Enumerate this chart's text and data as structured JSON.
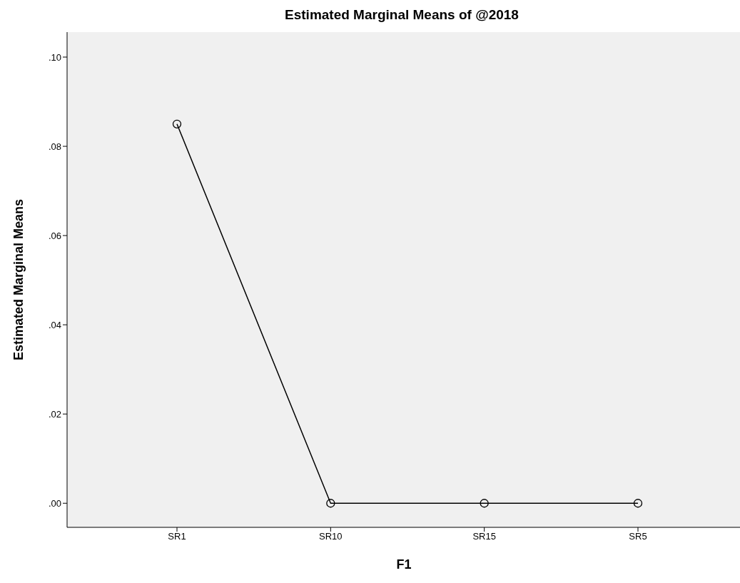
{
  "chart_data": {
    "type": "line",
    "title": "Estimated Marginal Means of @2018",
    "xlabel": "F1",
    "ylabel": "Estimated Marginal Means",
    "categories": [
      "SR1",
      "SR10",
      "SR15",
      "SR5"
    ],
    "series": [
      {
        "color": "#000000",
        "values": [
          0.085,
          0,
          0,
          0
        ]
      }
    ],
    "ylim": [
      -0.0054,
      0.1056
    ],
    "yticks": [
      {
        "value": 0,
        "label": ".00"
      },
      {
        "value": 0.02,
        "label": ".02"
      },
      {
        "value": 0.04,
        "label": ".04"
      },
      {
        "value": 0.06,
        "label": ".06"
      },
      {
        "value": 0.08,
        "label": ".08"
      },
      {
        "value": 0.1,
        "label": ".10"
      }
    ],
    "marker": "circle",
    "line_style": "solid"
  }
}
